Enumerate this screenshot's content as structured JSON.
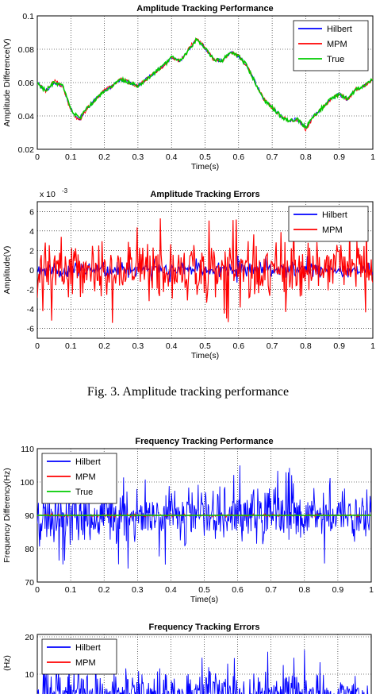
{
  "figure_caption": "Fig. 3.   Amplitude tracking performance",
  "chart_data": [
    {
      "type": "line",
      "title": "Amplitude Tracking Performance",
      "xlabel": "Time(s)",
      "ylabel": "Amplitude Difference(V)",
      "xlim": [
        0,
        1
      ],
      "ylim": [
        0.02,
        0.1
      ],
      "xticks": [
        "0",
        "0.1",
        "0.2",
        "0.3",
        "0.4",
        "0.5",
        "0.6",
        "0.7",
        "0.8",
        "0.9",
        "1"
      ],
      "yticks": [
        "0.02",
        "0.04",
        "0.06",
        "0.08",
        "0.1"
      ],
      "grid": true,
      "legend_position": "top-right",
      "x": [
        0,
        0.025,
        0.05,
        0.075,
        0.1,
        0.125,
        0.15,
        0.175,
        0.2,
        0.225,
        0.25,
        0.275,
        0.3,
        0.325,
        0.35,
        0.375,
        0.4,
        0.425,
        0.45,
        0.475,
        0.5,
        0.525,
        0.55,
        0.575,
        0.6,
        0.625,
        0.65,
        0.675,
        0.7,
        0.725,
        0.75,
        0.775,
        0.8,
        0.825,
        0.85,
        0.875,
        0.9,
        0.925,
        0.95,
        0.975,
        1.0
      ],
      "series": [
        {
          "name": "Hilbert",
          "color": "#0000ff",
          "values": [
            0.06,
            0.055,
            0.06,
            0.058,
            0.044,
            0.038,
            0.045,
            0.05,
            0.055,
            0.058,
            0.062,
            0.06,
            0.058,
            0.062,
            0.066,
            0.07,
            0.075,
            0.073,
            0.079,
            0.086,
            0.081,
            0.074,
            0.073,
            0.078,
            0.076,
            0.07,
            0.06,
            0.05,
            0.045,
            0.04,
            0.037,
            0.038,
            0.033,
            0.04,
            0.045,
            0.05,
            0.053,
            0.05,
            0.056,
            0.058,
            0.062
          ]
        },
        {
          "name": "MPM",
          "color": "#ff0000",
          "values": [
            0.06,
            0.055,
            0.061,
            0.058,
            0.043,
            0.037,
            0.045,
            0.05,
            0.056,
            0.058,
            0.062,
            0.06,
            0.058,
            0.062,
            0.066,
            0.07,
            0.075,
            0.073,
            0.08,
            0.087,
            0.081,
            0.074,
            0.073,
            0.078,
            0.076,
            0.07,
            0.06,
            0.05,
            0.045,
            0.04,
            0.037,
            0.038,
            0.032,
            0.04,
            0.045,
            0.05,
            0.053,
            0.05,
            0.056,
            0.058,
            0.062
          ]
        },
        {
          "name": "True",
          "color": "#00cc00",
          "values": [
            0.06,
            0.055,
            0.06,
            0.058,
            0.044,
            0.038,
            0.045,
            0.05,
            0.055,
            0.058,
            0.062,
            0.06,
            0.058,
            0.062,
            0.066,
            0.07,
            0.075,
            0.073,
            0.079,
            0.086,
            0.081,
            0.074,
            0.073,
            0.078,
            0.076,
            0.07,
            0.06,
            0.05,
            0.045,
            0.04,
            0.037,
            0.038,
            0.033,
            0.04,
            0.045,
            0.05,
            0.053,
            0.05,
            0.056,
            0.058,
            0.062
          ]
        }
      ]
    },
    {
      "type": "line",
      "title": "Amplitude Tracking Errors",
      "xlabel": "Time(s)",
      "ylabel": "Amplitude(V)",
      "exponent_label": "x 10",
      "exponent_power": "-3",
      "xlim": [
        0,
        1
      ],
      "ylim": [
        -7,
        7
      ],
      "xticks": [
        "0",
        "0.1",
        "0.2",
        "0.3",
        "0.4",
        "0.5",
        "0.6",
        "0.7",
        "0.8",
        "0.9",
        "1"
      ],
      "yticks": [
        "-6",
        "-4",
        "-2",
        "0",
        "2",
        "4",
        "6"
      ],
      "grid": true,
      "legend_position": "top-right",
      "noise": {
        "seed": 11,
        "n": 420
      },
      "series": [
        {
          "name": "Hilbert",
          "color": "#0000ff",
          "amplitude": 1.5
        },
        {
          "name": "MPM",
          "color": "#ff0000",
          "amplitude": 5.5
        }
      ]
    },
    {
      "type": "line",
      "title": "Frequency Tracking Performance",
      "xlabel": "Time(s)",
      "ylabel": "Frequency Differency(Hz)",
      "xlim": [
        0,
        1
      ],
      "ylim": [
        70,
        110
      ],
      "xticks": [
        "0",
        "0.1",
        "0.2",
        "0.3",
        "0.4",
        "0.5",
        "0.6",
        "0.7",
        "0.8",
        "0.9",
        "1"
      ],
      "yticks": [
        "70",
        "80",
        "90",
        "100",
        "110"
      ],
      "grid": true,
      "legend_position": "top-left",
      "noise": {
        "seed": 23,
        "n": 600
      },
      "series": [
        {
          "name": "Hilbert",
          "color": "#0000ff",
          "center": 90,
          "amplitude": 16
        },
        {
          "name": "MPM",
          "color": "#ff0000",
          "center": 90,
          "amplitude": 0.6
        },
        {
          "name": "True",
          "color": "#00cc00",
          "center": 90,
          "amplitude": 0
        }
      ]
    },
    {
      "type": "line",
      "title": "Frequency Tracking Errors",
      "ylabel": "(Hz)",
      "ylim_visible": [
        0,
        20
      ],
      "yticks": [
        "10",
        "20"
      ],
      "grid": true,
      "legend_position": "top-left",
      "noise": {
        "seed": 37,
        "n": 600
      },
      "series": [
        {
          "name": "Hilbert",
          "color": "#0000ff",
          "amplitude": 16
        },
        {
          "name": "MPM",
          "color": "#ff0000",
          "amplitude": 0.6
        }
      ]
    }
  ]
}
